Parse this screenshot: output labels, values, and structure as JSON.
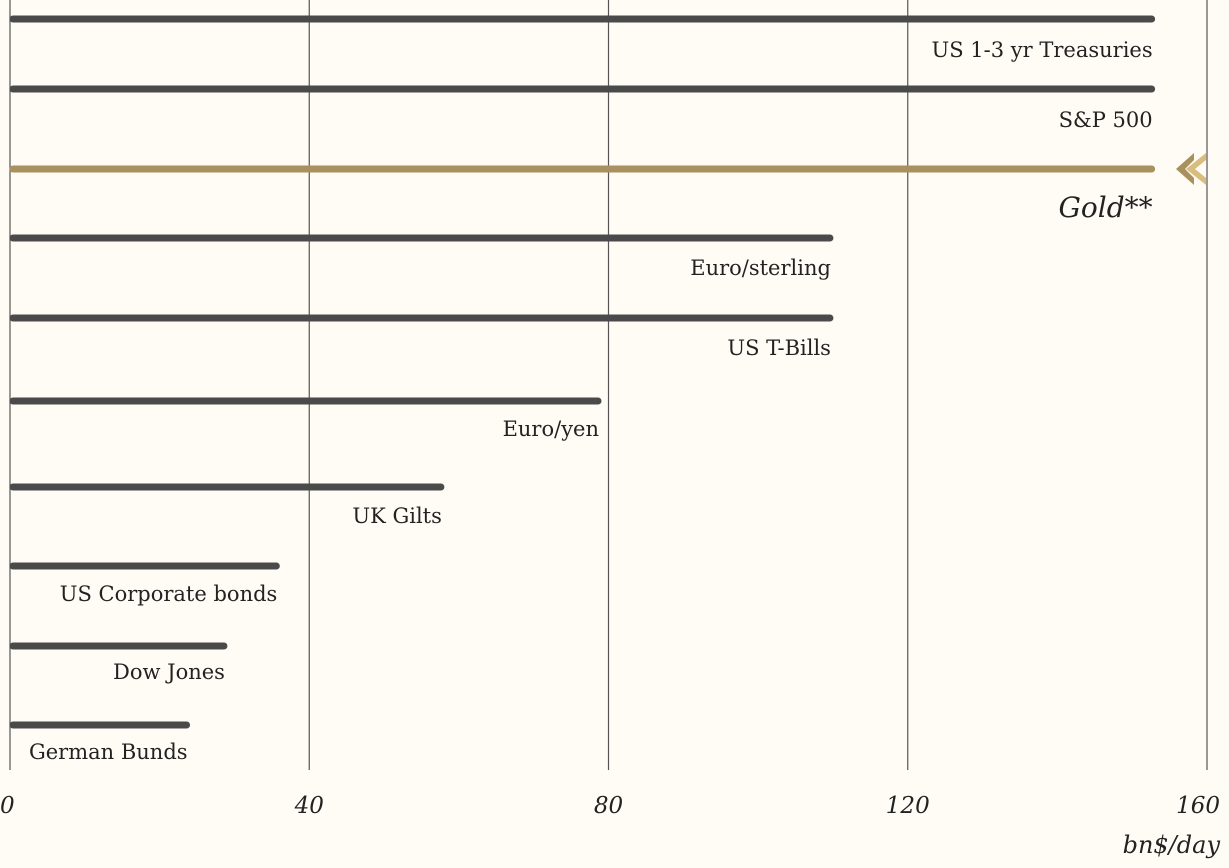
{
  "chart_data": {
    "type": "bar",
    "orientation": "horizontal",
    "title": "",
    "xlabel": "",
    "ylabel": "",
    "unit_label": "bn$/day",
    "xlim": [
      0,
      160
    ],
    "x_ticks": [
      "0",
      "40",
      "80",
      "120",
      "160"
    ],
    "x_tick_values": [
      0,
      40,
      80,
      120,
      160
    ],
    "grid": true,
    "categories": [
      "US 1-3 yr Treasuries",
      "S&P 500",
      "Gold**",
      "Euro/sterling",
      "US T-Bills",
      "Euro/yen",
      "UK Gilts",
      "US Corporate bonds",
      "Dow Jones",
      "German Bunds"
    ],
    "values": [
      153,
      153,
      153,
      110,
      110,
      79,
      58,
      36,
      29,
      24
    ],
    "highlight_category": "Gold**",
    "colors": {
      "bar": "#4a4a4a",
      "highlight": "#a8915f",
      "marker": "#d9bd7f",
      "grid": "#555555",
      "background": "#fffcf5"
    }
  }
}
